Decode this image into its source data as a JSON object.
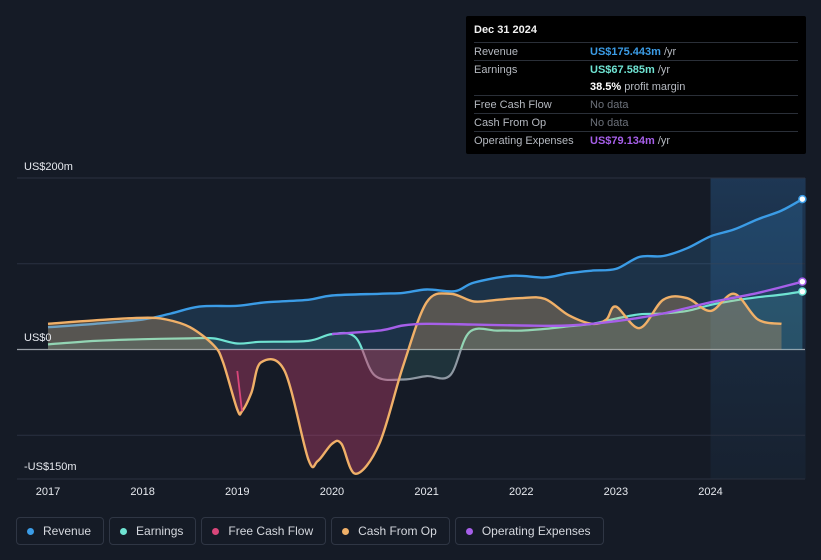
{
  "tooltip": {
    "date": "Dec 31 2024",
    "rows": [
      {
        "label": "Revenue",
        "value": "US$175.443m",
        "unit": "/yr",
        "color": "#3b9ce6"
      },
      {
        "label": "Earnings",
        "value": "US$67.585m",
        "unit": "/yr",
        "color": "#6fe3d2"
      },
      {
        "label": "",
        "value": "38.5%",
        "unit": "profit margin",
        "color": "#ffffff"
      },
      {
        "label": "Free Cash Flow",
        "value": "No data",
        "unit": "",
        "color": "#6c717a"
      },
      {
        "label": "Cash From Op",
        "value": "No data",
        "unit": "",
        "color": "#6c717a"
      },
      {
        "label": "Operating Expenses",
        "value": "US$79.134m",
        "unit": "/yr",
        "color": "#a65fe9"
      }
    ]
  },
  "legend": [
    {
      "label": "Revenue",
      "color": "#3b9ce6"
    },
    {
      "label": "Earnings",
      "color": "#6fe3d2"
    },
    {
      "label": "Free Cash Flow",
      "color": "#d9467a"
    },
    {
      "label": "Cash From Op",
      "color": "#f0b068"
    },
    {
      "label": "Operating Expenses",
      "color": "#a65fe9"
    }
  ],
  "chart_data": {
    "type": "line",
    "y_tick_labels": [
      "US$200m",
      "US$0",
      "-US$150m"
    ],
    "ylim": [
      -150,
      200
    ],
    "xlim": [
      2016.7,
      2024.97
    ],
    "x_tick_labels": [
      "2017",
      "2018",
      "2019",
      "2020",
      "2021",
      "2022",
      "2023",
      "2024"
    ],
    "forecast_shade_start": 2024.0,
    "series": [
      {
        "name": "Revenue",
        "color": "#3b9ce6",
        "fill": true,
        "points": [
          [
            2017,
            26
          ],
          [
            2017.5,
            30
          ],
          [
            2018,
            35
          ],
          [
            2018.3,
            42
          ],
          [
            2018.6,
            50
          ],
          [
            2019,
            51
          ],
          [
            2019.3,
            55
          ],
          [
            2019.75,
            58
          ],
          [
            2020,
            63
          ],
          [
            2020.5,
            65
          ],
          [
            2020.75,
            66
          ],
          [
            2021,
            70
          ],
          [
            2021.3,
            68
          ],
          [
            2021.5,
            78
          ],
          [
            2021.9,
            86
          ],
          [
            2022.25,
            84
          ],
          [
            2022.5,
            89
          ],
          [
            2022.75,
            92
          ],
          [
            2023,
            94
          ],
          [
            2023.25,
            108
          ],
          [
            2023.5,
            109
          ],
          [
            2023.75,
            118
          ],
          [
            2024,
            132
          ],
          [
            2024.25,
            140
          ],
          [
            2024.5,
            152
          ],
          [
            2024.75,
            162
          ],
          [
            2024.97,
            175.4
          ]
        ]
      },
      {
        "name": "Earnings",
        "color": "#6fe3d2",
        "fill": true,
        "points": [
          [
            2017,
            6
          ],
          [
            2017.5,
            10
          ],
          [
            2018,
            12
          ],
          [
            2018.5,
            13
          ],
          [
            2018.75,
            13
          ],
          [
            2019,
            7
          ],
          [
            2019.25,
            9
          ],
          [
            2019.75,
            10
          ],
          [
            2020,
            18
          ],
          [
            2020.25,
            14
          ],
          [
            2020.45,
            -30
          ],
          [
            2020.75,
            -35
          ],
          [
            2021,
            -31
          ],
          [
            2021.25,
            -30
          ],
          [
            2021.45,
            20
          ],
          [
            2021.75,
            22
          ],
          [
            2022,
            22
          ],
          [
            2022.25,
            24
          ],
          [
            2022.5,
            27
          ],
          [
            2022.75,
            30
          ],
          [
            2023,
            36
          ],
          [
            2023.25,
            41
          ],
          [
            2023.5,
            42
          ],
          [
            2023.75,
            45
          ],
          [
            2024,
            52
          ],
          [
            2024.25,
            57
          ],
          [
            2024.5,
            61
          ],
          [
            2024.75,
            64
          ],
          [
            2024.97,
            67.6
          ]
        ]
      },
      {
        "name": "Free Cash Flow",
        "color": "#d9467a",
        "fill": false,
        "points": [
          [
            2019,
            -25
          ],
          [
            2019.05,
            -72
          ]
        ]
      },
      {
        "name": "Cash From Op",
        "color": "#f0b068",
        "fill": true,
        "points": [
          [
            2017,
            30
          ],
          [
            2017.5,
            34
          ],
          [
            2018,
            37
          ],
          [
            2018.25,
            35
          ],
          [
            2018.5,
            26
          ],
          [
            2018.75,
            5
          ],
          [
            2018.85,
            -15
          ],
          [
            2019,
            -70
          ],
          [
            2019.05,
            -72
          ],
          [
            2019.15,
            -50
          ],
          [
            2019.25,
            -15
          ],
          [
            2019.5,
            -25
          ],
          [
            2019.75,
            -128
          ],
          [
            2019.85,
            -130
          ],
          [
            2020,
            -110
          ],
          [
            2020.1,
            -110
          ],
          [
            2020.25,
            -145
          ],
          [
            2020.5,
            -110
          ],
          [
            2020.75,
            -20
          ],
          [
            2021,
            55
          ],
          [
            2021.25,
            65
          ],
          [
            2021.5,
            56
          ],
          [
            2021.75,
            58
          ],
          [
            2022,
            60
          ],
          [
            2022.25,
            59
          ],
          [
            2022.5,
            40
          ],
          [
            2022.75,
            30
          ],
          [
            2022.9,
            35
          ],
          [
            2023,
            50
          ],
          [
            2023.25,
            25
          ],
          [
            2023.5,
            58
          ],
          [
            2023.75,
            60
          ],
          [
            2024,
            45
          ],
          [
            2024.25,
            65
          ],
          [
            2024.5,
            35
          ],
          [
            2024.75,
            30
          ]
        ]
      },
      {
        "name": "Operating Expenses",
        "color": "#a65fe9",
        "fill": false,
        "points": [
          [
            2020,
            18
          ],
          [
            2020.5,
            22
          ],
          [
            2020.75,
            28
          ],
          [
            2021,
            30
          ],
          [
            2021.5,
            29
          ],
          [
            2022,
            28
          ],
          [
            2022.5,
            28
          ],
          [
            2023,
            33
          ],
          [
            2023.5,
            42
          ],
          [
            2024,
            55
          ],
          [
            2024.5,
            66
          ],
          [
            2024.97,
            79.1
          ]
        ]
      }
    ]
  }
}
